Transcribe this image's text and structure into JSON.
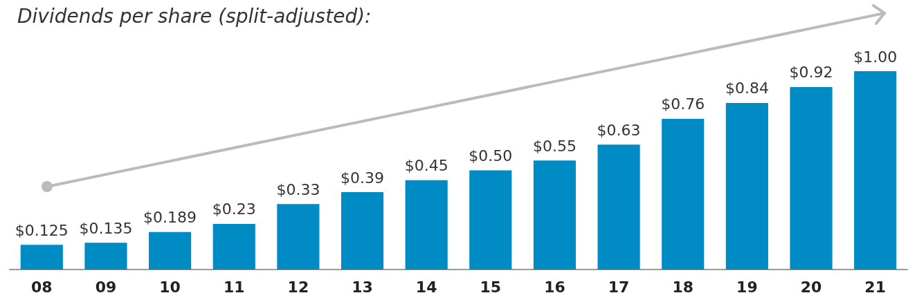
{
  "chart_data": {
    "type": "bar",
    "title": "Dividends per share (split-adjusted):",
    "categories": [
      "08",
      "09",
      "10",
      "11",
      "12",
      "13",
      "14",
      "15",
      "16",
      "17",
      "18",
      "19",
      "20",
      "21"
    ],
    "values": [
      0.125,
      0.135,
      0.189,
      0.23,
      0.33,
      0.39,
      0.45,
      0.5,
      0.55,
      0.63,
      0.76,
      0.84,
      0.92,
      1.0
    ],
    "value_labels": [
      "$0.125",
      "$0.135",
      "$0.189",
      "$0.23",
      "$0.33",
      "$0.39",
      "$0.45",
      "$0.50",
      "$0.55",
      "$0.63",
      "$0.76",
      "$0.84",
      "$0.92",
      "$1.00"
    ],
    "color": "#008bc4"
  }
}
